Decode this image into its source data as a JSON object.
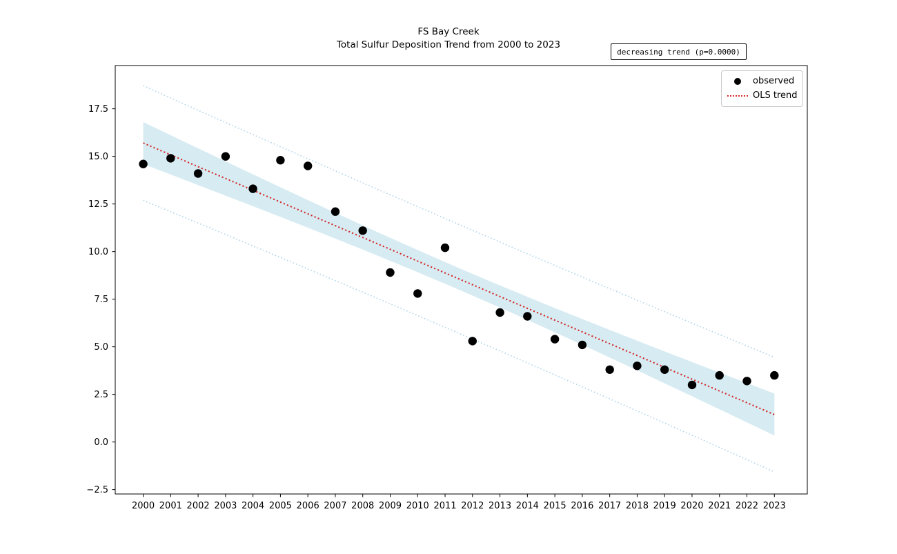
{
  "title": {
    "line1": "FS Bay Creek",
    "line2": "Total Sulfur Deposition Trend from 2000 to 2023"
  },
  "annotation": {
    "text": "decreasing trend (p=0.0000)"
  },
  "legend": {
    "position": "upper right",
    "items": [
      {
        "label": "observed",
        "marker": "black-dot"
      },
      {
        "label": "OLS trend",
        "marker": "red-dotted-line"
      }
    ]
  },
  "colors": {
    "observed": "#000000",
    "trend": "#d62728",
    "ci_band": "#add8e6",
    "pi_line": "#b8d8ec",
    "axis": "#000000",
    "background": "#ffffff"
  },
  "chart_data": {
    "type": "scatter",
    "title": "FS Bay Creek\nTotal Sulfur Deposition Trend from 2000 to 2023",
    "xlabel": "",
    "ylabel": "",
    "x": [
      2000,
      2001,
      2002,
      2003,
      2004,
      2005,
      2006,
      2007,
      2008,
      2009,
      2010,
      2011,
      2012,
      2013,
      2014,
      2015,
      2016,
      2017,
      2018,
      2019,
      2020,
      2021,
      2022,
      2023
    ],
    "series": [
      {
        "name": "observed",
        "values": [
          14.6,
          14.9,
          14.1,
          15.0,
          13.3,
          14.8,
          14.5,
          12.1,
          11.1,
          8.9,
          7.8,
          10.2,
          5.3,
          6.8,
          6.6,
          5.4,
          5.1,
          3.8,
          4.0,
          3.8,
          3.0,
          3.5,
          3.2,
          3.5
        ]
      }
    ],
    "trend": {
      "name": "OLS trend",
      "style": "dotted",
      "intercept_at_2000": 15.7,
      "slope": -0.62,
      "value_at_2023": 1.44
    },
    "intervals": {
      "n": 24,
      "mean_year": 2011.5,
      "sxx": 1150,
      "ci_halfwidth_scale": 2.78,
      "pi_halfwidth_scale": 2.8,
      "ci_at_2000": [
        14.6,
        16.8
      ],
      "ci_at_2023": [
        0.3,
        2.5
      ],
      "pi_at_2000": [
        12.7,
        18.7
      ],
      "pi_at_2023": [
        -1.5,
        4.4
      ]
    },
    "xticks": [
      2000,
      2001,
      2002,
      2003,
      2004,
      2005,
      2006,
      2007,
      2008,
      2009,
      2010,
      2011,
      2012,
      2013,
      2014,
      2015,
      2016,
      2017,
      2018,
      2019,
      2020,
      2021,
      2022,
      2023
    ],
    "yticks": [
      -2.5,
      0.0,
      2.5,
      5.0,
      7.5,
      10.0,
      12.5,
      15.0,
      17.5
    ],
    "xlim": [
      1998.98,
      2024.2
    ],
    "ylim": [
      -2.73,
      19.77
    ],
    "grid": false,
    "legend_position": "upper right"
  }
}
